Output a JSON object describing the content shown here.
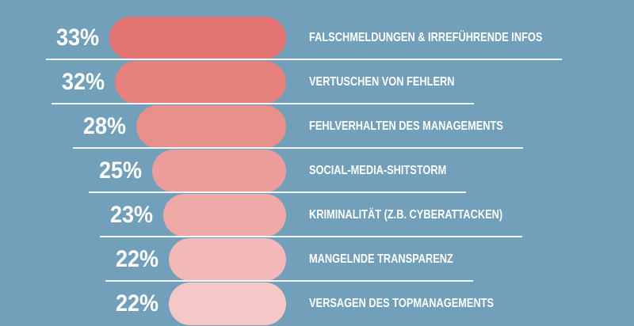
{
  "chart_data": {
    "type": "bar",
    "orientation": "horizontal",
    "categories": [
      "FALSCHMELDUNGEN & IRREFÜHRENDE INFOS",
      "VERTUSCHEN VON FEHLERN",
      "FEHLVERHALTEN DES MANAGEMENTS",
      "SOCIAL-MEDIA-SHITSTORM",
      "KRIMINALITÄT (Z.B. CYBERATTACKEN)",
      "MANGELNDE TRANSPARENZ",
      "VERSAGEN DES TOPMANAGEMENTS"
    ],
    "values": [
      33,
      32,
      28,
      25,
      23,
      22,
      22
    ],
    "value_labels": [
      "33%",
      "32%",
      "28%",
      "25%",
      "23%",
      "22%",
      "22%"
    ],
    "unit": "%",
    "colors": [
      "#e37471",
      "#e6817d",
      "#e8908c",
      "#ec9e9c",
      "#efaaa8",
      "#f2b9b8",
      "#f5c8c8"
    ],
    "background": "#729fb9",
    "grid": false
  }
}
